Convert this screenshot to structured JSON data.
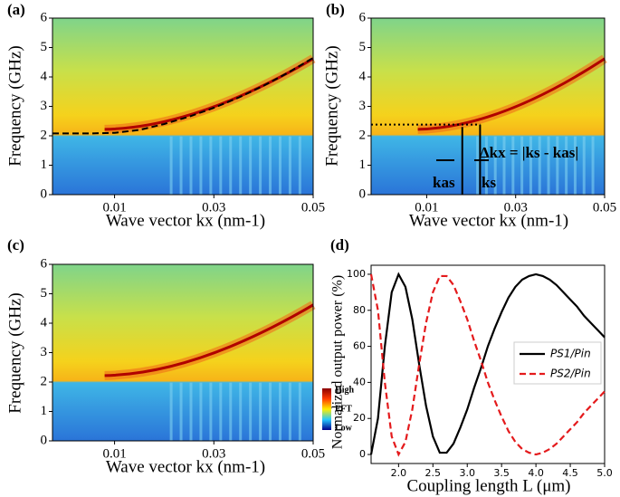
{
  "chart_data": [
    {
      "type": "heatmap",
      "panel": "(a)",
      "xlabel": "Wave vector kx (nm-1)",
      "ylabel": "Frequency (GHz)",
      "xlim": [
        -0.0025,
        0.05
      ],
      "ylim": [
        0,
        6
      ],
      "xticks": [
        0.01,
        0.03,
        0.05
      ],
      "yticks": [
        0,
        1,
        2,
        3,
        4,
        5,
        6
      ],
      "series": [
        {
          "color": "#000000",
          "style": "dashed",
          "x": [
            -0.0025,
            0.005,
            0.01,
            0.015,
            0.02,
            0.025,
            0.03,
            0.035,
            0.04,
            0.045,
            0.05
          ],
          "values": [
            2.08,
            2.08,
            2.1,
            2.2,
            2.4,
            2.65,
            2.95,
            3.3,
            3.7,
            4.15,
            4.65
          ]
        }
      ]
    },
    {
      "type": "heatmap",
      "panel": "(b)",
      "xlabel": "Wave vector kx (nm-1)",
      "ylabel": "Frequency (GHz)",
      "xlim": [
        -0.0025,
        0.05
      ],
      "ylim": [
        0,
        6
      ],
      "xticks": [
        0.01,
        0.03,
        0.05
      ],
      "yticks": [
        0,
        1,
        2,
        3,
        4,
        5,
        6
      ],
      "series": [
        {
          "color": "#000000",
          "style": "dotted",
          "x": [
            -0.0025,
            0.022
          ],
          "values": [
            2.38,
            2.38
          ]
        },
        {
          "color": "#000000",
          "style": "solid",
          "x": [
            0.018,
            0.018
          ],
          "values": [
            0,
            2.3
          ]
        },
        {
          "color": "#000000",
          "style": "solid",
          "x": [
            0.022,
            0.022
          ],
          "values": [
            0,
            2.38
          ]
        }
      ],
      "annotations": [
        "Δkx = |ks - kas|",
        "kas",
        "ks"
      ]
    },
    {
      "type": "heatmap",
      "panel": "(c)",
      "xlabel": "Wave vector kx (nm-1)",
      "ylabel": "Frequency (GHz)",
      "xlim": [
        -0.0025,
        0.05
      ],
      "ylim": [
        0,
        6
      ],
      "xticks": [
        0.01,
        0.03,
        0.05
      ],
      "yticks": [
        0,
        1,
        2,
        3,
        4,
        5,
        6
      ],
      "series": [],
      "colorbar": [
        "High",
        "FFT",
        "Low"
      ]
    },
    {
      "type": "line",
      "panel": "(d)",
      "xlabel": "Coupling length L (μm)",
      "ylabel": "Normalized output power (%)",
      "xlim": [
        1.6,
        5.0
      ],
      "ylim": [
        -5,
        105
      ],
      "xticks": [
        {
          "value": 2,
          "label": "2.0"
        },
        2.5,
        {
          "value": 3,
          "label": "3.0"
        },
        3.5,
        {
          "value": 4,
          "label": "4.0"
        },
        4.5,
        {
          "value": 5,
          "label": "5.0"
        }
      ],
      "yticks": [
        0,
        20,
        40,
        60,
        80,
        100
      ],
      "x": [
        1.6,
        1.7,
        1.8,
        1.9,
        2.0,
        2.1,
        2.2,
        2.3,
        2.4,
        2.5,
        2.6,
        2.7,
        2.8,
        2.9,
        3.0,
        3.1,
        3.2,
        3.3,
        3.4,
        3.5,
        3.6,
        3.7,
        3.8,
        3.9,
        4.0,
        4.1,
        4.2,
        4.3,
        4.4,
        4.5,
        4.6,
        4.7,
        4.8,
        4.9,
        5.0
      ],
      "series": [
        {
          "name": "PS1/Pin",
          "color": "#000000",
          "style": "solid",
          "values": [
            0,
            20,
            60,
            90,
            100,
            93,
            75,
            50,
            27,
            10,
            1,
            1,
            6,
            15,
            25,
            37,
            48,
            60,
            70,
            79,
            87,
            93,
            97,
            99,
            100,
            99,
            97,
            94,
            90,
            86,
            82,
            77,
            73,
            69,
            65
          ]
        },
        {
          "name": "PS2/Pin",
          "color": "#e41a1c",
          "style": "dashed",
          "values": [
            100,
            80,
            40,
            10,
            0,
            7,
            25,
            50,
            73,
            90,
            99,
            99,
            94,
            85,
            75,
            63,
            52,
            40,
            30,
            21,
            13,
            7,
            3,
            1,
            0,
            1,
            3,
            6,
            10,
            14,
            18,
            23,
            27,
            31,
            35
          ]
        }
      ]
    }
  ]
}
